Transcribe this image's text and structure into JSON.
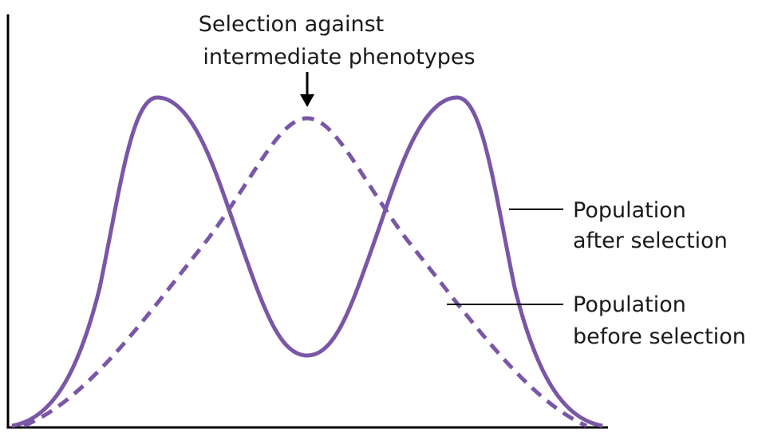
{
  "annotation": {
    "line1": "Selection against",
    "line2": "intermediate phenotypes"
  },
  "labels": {
    "after": {
      "line1": "Population",
      "line2": "after selection"
    },
    "before": {
      "line1": "Population",
      "line2": "before selection"
    }
  },
  "colors": {
    "curve": "#7a57a6",
    "axis": "#000000",
    "text": "#1a1a1a"
  },
  "icons": {
    "annotation_arrow": "arrow-down-icon"
  }
}
